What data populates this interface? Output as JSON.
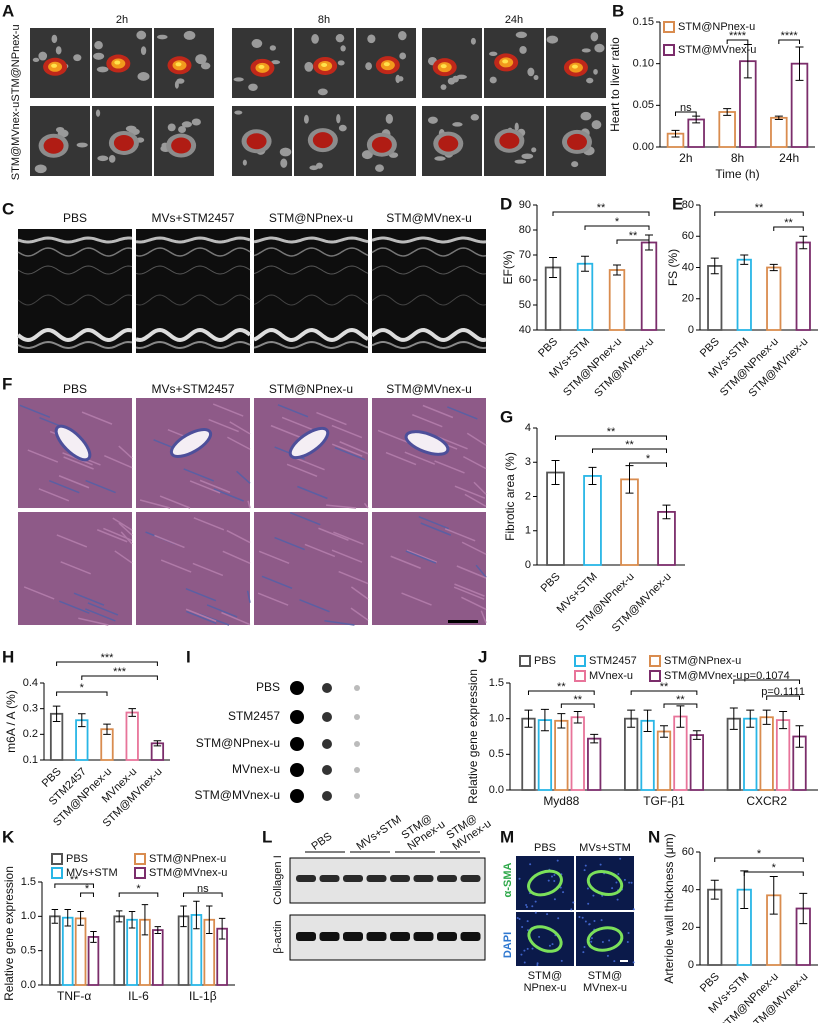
{
  "panel_labels": [
    "A",
    "B",
    "C",
    "D",
    "E",
    "F",
    "G",
    "H",
    "I",
    "J",
    "K",
    "L",
    "M",
    "N"
  ],
  "panel_a": {
    "columns": [
      "2h",
      "8h",
      "24h"
    ],
    "rows": [
      "STM@NPnex-u",
      "STM@MVnex-u"
    ]
  },
  "panel_c": {
    "columns": [
      "PBS",
      "MVs+STM2457",
      "STM@NPnex-u",
      "STM@MVnex-u"
    ]
  },
  "panel_f": {
    "columns": [
      "PBS",
      "MVs+STM2457",
      "STM@NPnex-u",
      "STM@MVnex-u"
    ]
  },
  "panel_i": {
    "rows": [
      "PBS",
      "STM2457",
      "STM@NPnex-u",
      "MVnex-u",
      "STM@MVnex-u"
    ]
  },
  "panel_l": {
    "columns": [
      [
        "PBS"
      ],
      [
        "MVs+STM"
      ],
      [
        "STM@",
        "NPnex-u"
      ],
      [
        "STM@",
        "MVnex-u"
      ]
    ],
    "rows": [
      "Collagen I",
      "β-actin"
    ]
  },
  "panel_m": {
    "top": [
      "PBS",
      "MVs+STM"
    ],
    "bottom": [
      [
        "STM@",
        "NPnex-u"
      ],
      [
        "STM@",
        "MVnex-u"
      ]
    ],
    "stains": [
      "DAPI",
      "α-SMA"
    ]
  },
  "chart_data": [
    {
      "type": "bar",
      "ylabel": "Heart to liver ratio",
      "xlabel": "Time (h)",
      "categories": [
        "2h",
        "8h",
        "24h"
      ],
      "series": [
        {
          "name": "STM@NPnex-u",
          "color": "#d98c4f",
          "values": [
            0.016,
            0.042,
            0.035
          ],
          "errors": [
            0.004,
            0.004,
            0.002
          ]
        },
        {
          "name": "STM@MVnex-u",
          "color": "#7b2d6b",
          "values": [
            0.033,
            0.103,
            0.1
          ],
          "errors": [
            0.004,
            0.02,
            0.02
          ]
        }
      ],
      "ylim": [
        0,
        0.15
      ],
      "yticks": [
        {
          "value": 0,
          "label": "0.00"
        },
        {
          "value": 0.05,
          "label": "0.05"
        },
        {
          "value": 0.1,
          "label": "0.10"
        },
        {
          "value": 0.15,
          "label": "0.15"
        }
      ],
      "annotations": [
        "ns",
        "****",
        "****"
      ]
    },
    {
      "type": "bar",
      "ylabel": "EF(%)",
      "categories": [
        "PBS",
        "MVs+STM",
        "STM@NPnex-u",
        "STM@MVnex-u"
      ],
      "colors": [
        "#555555",
        "#29b6e6",
        "#d98c4f",
        "#7b2d6b"
      ],
      "values": [
        65,
        66.5,
        64,
        75
      ],
      "errors": [
        4,
        3,
        2,
        3
      ],
      "ylim": [
        40,
        90
      ],
      "yticks": [
        40,
        50,
        60,
        70,
        80,
        90
      ],
      "annotations": [
        "**",
        "*",
        "**"
      ]
    },
    {
      "type": "bar",
      "ylabel": "FS (%)",
      "categories": [
        "PBS",
        "MVs+STM",
        "STM@NPnex-u",
        "STM@MVnex-u"
      ],
      "colors": [
        "#555555",
        "#29b6e6",
        "#d98c4f",
        "#7b2d6b"
      ],
      "values": [
        41,
        45,
        40,
        56
      ],
      "errors": [
        5,
        3,
        2,
        4
      ],
      "ylim": [
        0,
        80
      ],
      "yticks": [
        0,
        20,
        40,
        60,
        80
      ],
      "annotations": [
        "**",
        "**"
      ]
    },
    {
      "type": "bar",
      "ylabel": "Fibrotic area (%)",
      "categories": [
        "PBS",
        "MVs+STM",
        "STM@NPnex-u",
        "STM@MVnex-u"
      ],
      "colors": [
        "#555555",
        "#29b6e6",
        "#d98c4f",
        "#7b2d6b"
      ],
      "values": [
        2.7,
        2.6,
        2.5,
        1.55
      ],
      "errors": [
        0.35,
        0.25,
        0.4,
        0.2
      ],
      "ylim": [
        0,
        4
      ],
      "yticks": [
        0,
        1,
        2,
        3,
        4
      ],
      "annotations": [
        "**",
        "**",
        "*"
      ]
    },
    {
      "type": "bar",
      "ylabel": "m6A / A (%)",
      "categories": [
        "PBS",
        "STM2457",
        "STM@NPnex-u",
        "MVnex-u",
        "STM@MVnex-u"
      ],
      "colors": [
        "#555555",
        "#29b6e6",
        "#d98c4f",
        "#e8749a",
        "#7b2d6b"
      ],
      "values": [
        0.28,
        0.255,
        0.22,
        0.285,
        0.165
      ],
      "errors": [
        0.03,
        0.025,
        0.02,
        0.015,
        0.01
      ],
      "ylim": [
        0.1,
        0.4
      ],
      "yticks": [
        0.1,
        0.2,
        0.3,
        0.4
      ],
      "annotations": [
        "***",
        "***",
        "*"
      ]
    },
    {
      "type": "bar",
      "ylabel": "Relative gene expression",
      "categories": [
        "Myd88",
        "TGF-β1",
        "CXCR2"
      ],
      "series": [
        {
          "name": "PBS",
          "color": "#555555",
          "values": [
            1.0,
            1.0,
            1.0
          ],
          "errors": [
            0.12,
            0.12,
            0.15
          ]
        },
        {
          "name": "STM2457",
          "color": "#29b6e6",
          "values": [
            0.98,
            0.97,
            1.0
          ],
          "errors": [
            0.15,
            0.15,
            0.12
          ]
        },
        {
          "name": "STM@NPnex-u",
          "color": "#d98c4f",
          "values": [
            0.97,
            0.82,
            1.02
          ],
          "errors": [
            0.1,
            0.08,
            0.1
          ]
        },
        {
          "name": "MVnex-u",
          "color": "#e8749a",
          "values": [
            1.02,
            1.03,
            0.98
          ],
          "errors": [
            0.08,
            0.15,
            0.12
          ]
        },
        {
          "name": "STM@MVnex-u",
          "color": "#7b2d6b",
          "values": [
            0.72,
            0.77,
            0.75
          ],
          "errors": [
            0.06,
            0.06,
            0.15
          ]
        }
      ],
      "ylim": [
        0,
        1.5
      ],
      "yticks": [
        {
          "value": 0,
          "label": "0.0"
        },
        0.5,
        {
          "value": 1,
          "label": "1.0"
        },
        1.5
      ],
      "annotations": [
        "**",
        "**",
        "**",
        "**",
        "p=0.1074",
        "p=0.1111"
      ]
    },
    {
      "type": "bar",
      "ylabel": "Relative gene expression",
      "categories": [
        "TNF-α",
        "IL-6",
        "IL-1β"
      ],
      "series": [
        {
          "name": "PBS",
          "color": "#555555",
          "values": [
            1.0,
            1.0,
            1.0
          ],
          "errors": [
            0.1,
            0.08,
            0.15
          ]
        },
        {
          "name": "MVs+STM",
          "color": "#29b6e6",
          "values": [
            0.98,
            0.95,
            1.02
          ],
          "errors": [
            0.12,
            0.12,
            0.2
          ]
        },
        {
          "name": "STM@NPnex-u",
          "color": "#d98c4f",
          "values": [
            0.97,
            0.95,
            0.95
          ],
          "errors": [
            0.1,
            0.22,
            0.2
          ]
        },
        {
          "name": "STM@MVnex-u",
          "color": "#7b2d6b",
          "values": [
            0.7,
            0.8,
            0.82
          ],
          "errors": [
            0.08,
            0.05,
            0.15
          ]
        }
      ],
      "ylim": [
        0,
        1.5
      ],
      "yticks": [
        {
          "value": 0,
          "label": "0.0"
        },
        0.5,
        {
          "value": 1,
          "label": "1.0"
        },
        1.5
      ],
      "annotations": [
        "**",
        "*",
        "*",
        "ns"
      ]
    },
    {
      "type": "bar",
      "ylabel": "Arteriole wall thickness (μm)",
      "categories": [
        "PBS",
        "MVs+STM",
        "STM@NPnex-u",
        "STM@MVnex-u"
      ],
      "colors": [
        "#555555",
        "#29b6e6",
        "#d98c4f",
        "#7b2d6b"
      ],
      "values": [
        40,
        40,
        37,
        30
      ],
      "errors": [
        5,
        10,
        10,
        8
      ],
      "ylim": [
        0,
        60
      ],
      "yticks": [
        0,
        20,
        40,
        60
      ],
      "annotations": [
        "*",
        "*"
      ]
    }
  ]
}
